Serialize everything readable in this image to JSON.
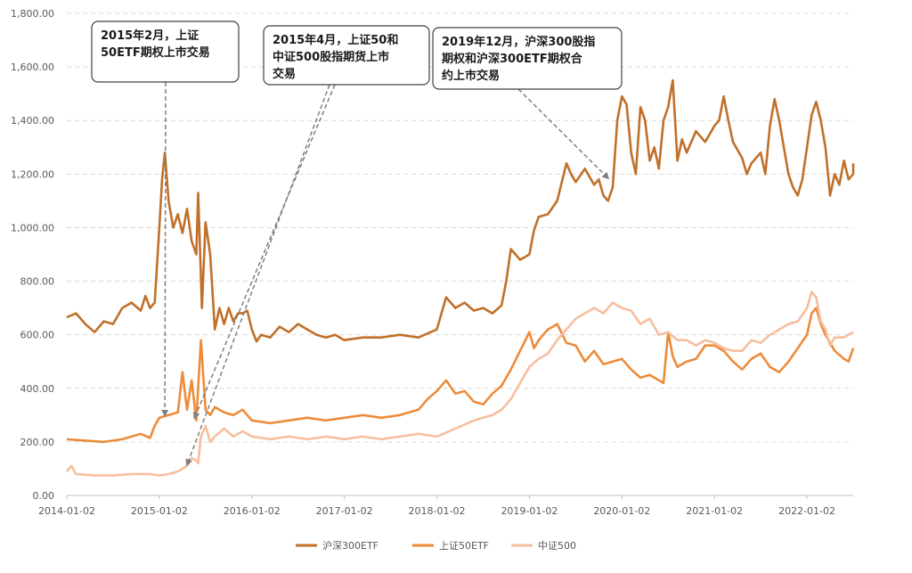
{
  "chart_data": {
    "type": "line",
    "title": "",
    "xlabel": "",
    "ylabel": "",
    "ylim": [
      0,
      1800
    ],
    "y_ticks": [
      "0.00",
      "200.00",
      "400.00",
      "600.00",
      "800.00",
      "1,000.00",
      "1,200.00",
      "1,400.00",
      "1,600.00",
      "1,800.00"
    ],
    "x_ticks": [
      "2014-01-02",
      "2015-01-02",
      "2016-01-02",
      "2017-01-02",
      "2018-01-02",
      "2019-01-02",
      "2020-01-02",
      "2021-01-02",
      "2022-01-02"
    ],
    "grid": "horizontal-dashed",
    "legend_position": "bottom",
    "series": [
      {
        "name": "沪深300ETF",
        "color": "#C0702A",
        "points": [
          [
            2014.0,
            665
          ],
          [
            2014.1,
            680
          ],
          [
            2014.2,
            640
          ],
          [
            2014.3,
            610
          ],
          [
            2014.4,
            650
          ],
          [
            2014.5,
            640
          ],
          [
            2014.6,
            700
          ],
          [
            2014.7,
            720
          ],
          [
            2014.8,
            690
          ],
          [
            2014.85,
            745
          ],
          [
            2014.9,
            700
          ],
          [
            2014.95,
            720
          ],
          [
            2015.0,
            1000
          ],
          [
            2015.03,
            1180
          ],
          [
            2015.06,
            1280
          ],
          [
            2015.1,
            1100
          ],
          [
            2015.15,
            1000
          ],
          [
            2015.2,
            1050
          ],
          [
            2015.25,
            980
          ],
          [
            2015.3,
            1070
          ],
          [
            2015.35,
            950
          ],
          [
            2015.4,
            900
          ],
          [
            2015.42,
            1130
          ],
          [
            2015.46,
            700
          ],
          [
            2015.5,
            1020
          ],
          [
            2015.55,
            900
          ],
          [
            2015.6,
            620
          ],
          [
            2015.65,
            700
          ],
          [
            2015.7,
            640
          ],
          [
            2015.75,
            700
          ],
          [
            2015.8,
            650
          ],
          [
            2015.85,
            680
          ],
          [
            2015.9,
            680
          ],
          [
            2015.95,
            690
          ],
          [
            2016.0,
            620
          ],
          [
            2016.05,
            575
          ],
          [
            2016.1,
            600
          ],
          [
            2016.2,
            590
          ],
          [
            2016.3,
            630
          ],
          [
            2016.4,
            610
          ],
          [
            2016.5,
            640
          ],
          [
            2016.6,
            620
          ],
          [
            2016.7,
            600
          ],
          [
            2016.8,
            590
          ],
          [
            2016.9,
            600
          ],
          [
            2017.0,
            580
          ],
          [
            2017.2,
            590
          ],
          [
            2017.4,
            590
          ],
          [
            2017.6,
            600
          ],
          [
            2017.8,
            590
          ],
          [
            2018.0,
            620
          ],
          [
            2018.1,
            740
          ],
          [
            2018.2,
            700
          ],
          [
            2018.3,
            720
          ],
          [
            2018.4,
            690
          ],
          [
            2018.5,
            700
          ],
          [
            2018.6,
            680
          ],
          [
            2018.7,
            710
          ],
          [
            2018.75,
            800
          ],
          [
            2018.8,
            920
          ],
          [
            2018.9,
            880
          ],
          [
            2019.0,
            900
          ],
          [
            2019.05,
            990
          ],
          [
            2019.1,
            1040
          ],
          [
            2019.2,
            1050
          ],
          [
            2019.3,
            1100
          ],
          [
            2019.4,
            1240
          ],
          [
            2019.45,
            1200
          ],
          [
            2019.5,
            1170
          ],
          [
            2019.6,
            1220
          ],
          [
            2019.7,
            1160
          ],
          [
            2019.75,
            1180
          ],
          [
            2019.8,
            1120
          ],
          [
            2019.85,
            1100
          ],
          [
            2019.9,
            1150
          ],
          [
            2019.95,
            1400
          ],
          [
            2020.0,
            1490
          ],
          [
            2020.05,
            1460
          ],
          [
            2020.1,
            1280
          ],
          [
            2020.15,
            1200
          ],
          [
            2020.2,
            1450
          ],
          [
            2020.25,
            1400
          ],
          [
            2020.3,
            1250
          ],
          [
            2020.35,
            1300
          ],
          [
            2020.4,
            1220
          ],
          [
            2020.45,
            1400
          ],
          [
            2020.5,
            1450
          ],
          [
            2020.55,
            1550
          ],
          [
            2020.6,
            1250
          ],
          [
            2020.65,
            1330
          ],
          [
            2020.7,
            1280
          ],
          [
            2020.8,
            1360
          ],
          [
            2020.9,
            1320
          ],
          [
            2021.0,
            1380
          ],
          [
            2021.05,
            1400
          ],
          [
            2021.1,
            1490
          ],
          [
            2021.15,
            1400
          ],
          [
            2021.2,
            1320
          ],
          [
            2021.3,
            1260
          ],
          [
            2021.35,
            1200
          ],
          [
            2021.4,
            1240
          ],
          [
            2021.5,
            1280
          ],
          [
            2021.55,
            1200
          ],
          [
            2021.6,
            1380
          ],
          [
            2021.65,
            1480
          ],
          [
            2021.7,
            1400
          ],
          [
            2021.75,
            1300
          ],
          [
            2021.8,
            1200
          ],
          [
            2021.85,
            1150
          ],
          [
            2021.9,
            1120
          ],
          [
            2021.95,
            1180
          ],
          [
            2022.0,
            1300
          ],
          [
            2022.05,
            1420
          ],
          [
            2022.1,
            1470
          ],
          [
            2022.15,
            1400
          ],
          [
            2022.2,
            1300
          ],
          [
            2022.25,
            1120
          ],
          [
            2022.3,
            1200
          ],
          [
            2022.35,
            1160
          ],
          [
            2022.4,
            1250
          ],
          [
            2022.45,
            1180
          ],
          [
            2022.5,
            1200
          ],
          [
            2022.5,
            1240
          ]
        ]
      },
      {
        "name": "上证50ETF",
        "color": "#ED8B3A",
        "points": [
          [
            2014.0,
            210
          ],
          [
            2014.2,
            205
          ],
          [
            2014.4,
            200
          ],
          [
            2014.6,
            210
          ],
          [
            2014.8,
            230
          ],
          [
            2014.9,
            215
          ],
          [
            2014.95,
            260
          ],
          [
            2015.0,
            290
          ],
          [
            2015.1,
            300
          ],
          [
            2015.2,
            310
          ],
          [
            2015.25,
            460
          ],
          [
            2015.3,
            320
          ],
          [
            2015.35,
            430
          ],
          [
            2015.4,
            280
          ],
          [
            2015.45,
            580
          ],
          [
            2015.5,
            320
          ],
          [
            2015.55,
            300
          ],
          [
            2015.6,
            330
          ],
          [
            2015.7,
            310
          ],
          [
            2015.8,
            300
          ],
          [
            2015.9,
            320
          ],
          [
            2016.0,
            280
          ],
          [
            2016.2,
            270
          ],
          [
            2016.4,
            280
          ],
          [
            2016.6,
            290
          ],
          [
            2016.8,
            280
          ],
          [
            2017.0,
            290
          ],
          [
            2017.2,
            300
          ],
          [
            2017.4,
            290
          ],
          [
            2017.6,
            300
          ],
          [
            2017.8,
            320
          ],
          [
            2017.9,
            360
          ],
          [
            2018.0,
            390
          ],
          [
            2018.1,
            430
          ],
          [
            2018.2,
            380
          ],
          [
            2018.3,
            390
          ],
          [
            2018.4,
            350
          ],
          [
            2018.5,
            340
          ],
          [
            2018.6,
            380
          ],
          [
            2018.7,
            410
          ],
          [
            2018.8,
            470
          ],
          [
            2018.9,
            540
          ],
          [
            2019.0,
            610
          ],
          [
            2019.05,
            550
          ],
          [
            2019.1,
            580
          ],
          [
            2019.2,
            620
          ],
          [
            2019.3,
            640
          ],
          [
            2019.4,
            570
          ],
          [
            2019.5,
            560
          ],
          [
            2019.6,
            500
          ],
          [
            2019.7,
            540
          ],
          [
            2019.8,
            490
          ],
          [
            2019.9,
            500
          ],
          [
            2020.0,
            510
          ],
          [
            2020.1,
            470
          ],
          [
            2020.2,
            440
          ],
          [
            2020.3,
            450
          ],
          [
            2020.4,
            430
          ],
          [
            2020.45,
            420
          ],
          [
            2020.5,
            610
          ],
          [
            2020.55,
            520
          ],
          [
            2020.6,
            480
          ],
          [
            2020.7,
            500
          ],
          [
            2020.8,
            510
          ],
          [
            2020.9,
            560
          ],
          [
            2021.0,
            560
          ],
          [
            2021.1,
            540
          ],
          [
            2021.2,
            500
          ],
          [
            2021.3,
            470
          ],
          [
            2021.4,
            510
          ],
          [
            2021.5,
            530
          ],
          [
            2021.6,
            480
          ],
          [
            2021.7,
            460
          ],
          [
            2021.8,
            500
          ],
          [
            2021.9,
            550
          ],
          [
            2022.0,
            600
          ],
          [
            2022.05,
            680
          ],
          [
            2022.1,
            700
          ],
          [
            2022.15,
            640
          ],
          [
            2022.2,
            600
          ],
          [
            2022.3,
            540
          ],
          [
            2022.4,
            510
          ],
          [
            2022.45,
            500
          ],
          [
            2022.5,
            550
          ]
        ]
      },
      {
        "name": "中证500",
        "color": "#F7BE9E",
        "points": [
          [
            2014.0,
            90
          ],
          [
            2014.05,
            110
          ],
          [
            2014.1,
            80
          ],
          [
            2014.3,
            75
          ],
          [
            2014.5,
            75
          ],
          [
            2014.7,
            80
          ],
          [
            2014.9,
            80
          ],
          [
            2015.0,
            75
          ],
          [
            2015.1,
            80
          ],
          [
            2015.2,
            90
          ],
          [
            2015.3,
            110
          ],
          [
            2015.35,
            140
          ],
          [
            2015.4,
            130
          ],
          [
            2015.42,
            120
          ],
          [
            2015.45,
            220
          ],
          [
            2015.5,
            260
          ],
          [
            2015.55,
            200
          ],
          [
            2015.6,
            220
          ],
          [
            2015.7,
            250
          ],
          [
            2015.8,
            220
          ],
          [
            2015.9,
            240
          ],
          [
            2016.0,
            220
          ],
          [
            2016.2,
            210
          ],
          [
            2016.4,
            220
          ],
          [
            2016.6,
            210
          ],
          [
            2016.8,
            220
          ],
          [
            2017.0,
            210
          ],
          [
            2017.2,
            220
          ],
          [
            2017.4,
            210
          ],
          [
            2017.6,
            220
          ],
          [
            2017.8,
            230
          ],
          [
            2018.0,
            220
          ],
          [
            2018.2,
            250
          ],
          [
            2018.4,
            280
          ],
          [
            2018.6,
            300
          ],
          [
            2018.7,
            320
          ],
          [
            2018.8,
            360
          ],
          [
            2018.9,
            420
          ],
          [
            2019.0,
            480
          ],
          [
            2019.1,
            510
          ],
          [
            2019.2,
            530
          ],
          [
            2019.3,
            580
          ],
          [
            2019.4,
            620
          ],
          [
            2019.5,
            660
          ],
          [
            2019.6,
            680
          ],
          [
            2019.7,
            700
          ],
          [
            2019.8,
            680
          ],
          [
            2019.9,
            720
          ],
          [
            2020.0,
            700
          ],
          [
            2020.1,
            690
          ],
          [
            2020.2,
            640
          ],
          [
            2020.3,
            660
          ],
          [
            2020.4,
            600
          ],
          [
            2020.5,
            610
          ],
          [
            2020.6,
            580
          ],
          [
            2020.7,
            580
          ],
          [
            2020.8,
            560
          ],
          [
            2020.9,
            580
          ],
          [
            2021.0,
            570
          ],
          [
            2021.1,
            550
          ],
          [
            2021.2,
            540
          ],
          [
            2021.3,
            540
          ],
          [
            2021.4,
            580
          ],
          [
            2021.5,
            570
          ],
          [
            2021.6,
            600
          ],
          [
            2021.7,
            620
          ],
          [
            2021.8,
            640
          ],
          [
            2021.9,
            650
          ],
          [
            2022.0,
            700
          ],
          [
            2022.05,
            760
          ],
          [
            2022.1,
            740
          ],
          [
            2022.15,
            650
          ],
          [
            2022.2,
            620
          ],
          [
            2022.25,
            560
          ],
          [
            2022.3,
            590
          ],
          [
            2022.4,
            590
          ],
          [
            2022.5,
            610
          ]
        ]
      }
    ],
    "annotations": [
      {
        "lines": [
          "2015年2月，上证",
          "50ETF期权上市交易"
        ],
        "target": [
          [
            2015.06,
            300
          ]
        ]
      },
      {
        "lines": [
          "2015年4月，上证50和",
          "中证500股指期货上市",
          "交易"
        ],
        "target": [
          [
            2015.3,
            115
          ],
          [
            2015.38,
            290
          ]
        ]
      },
      {
        "lines": [
          "2019年12月，沪深300股指",
          "期权和沪深300ETF期权合",
          "约上市交易"
        ],
        "target": [
          [
            2019.85,
            1185
          ]
        ]
      }
    ]
  }
}
